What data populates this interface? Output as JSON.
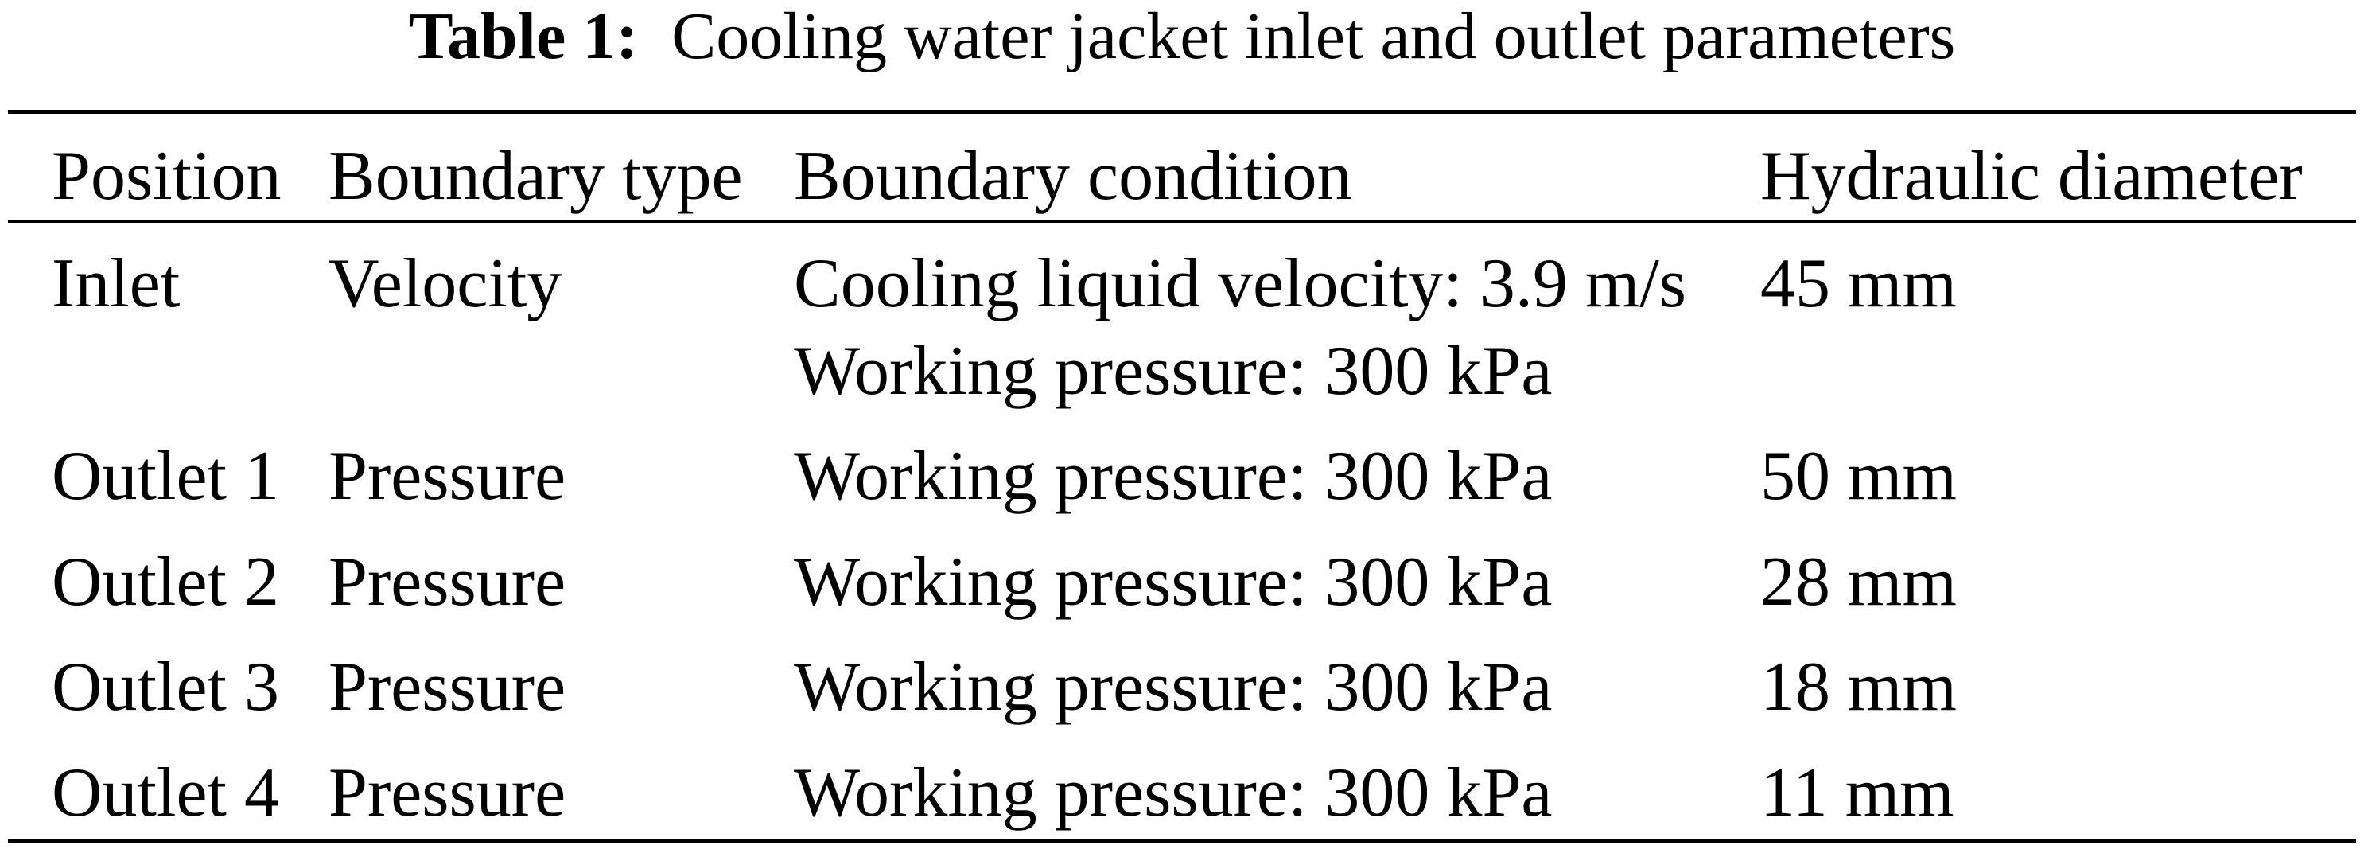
{
  "caption": {
    "label": "Table 1:",
    "text": "Cooling water jacket inlet and outlet parameters"
  },
  "table": {
    "headers": [
      "Position",
      "Boundary type",
      "Boundary condition",
      "Hydraulic diameter"
    ],
    "rows": [
      {
        "position": "Inlet",
        "type": "Velocity",
        "conditions": [
          "Cooling liquid velocity: 3.9 m/s",
          "Working pressure: 300 kPa"
        ],
        "diameter": "45 mm"
      },
      {
        "position": "Outlet 1",
        "type": "Pressure",
        "conditions": [
          "Working pressure: 300 kPa"
        ],
        "diameter": "50 mm"
      },
      {
        "position": "Outlet 2",
        "type": "Pressure",
        "conditions": [
          "Working pressure: 300 kPa"
        ],
        "diameter": "28 mm"
      },
      {
        "position": "Outlet 3",
        "type": "Pressure",
        "conditions": [
          "Working pressure: 300 kPa"
        ],
        "diameter": "18 mm"
      },
      {
        "position": "Outlet 4",
        "type": "Pressure",
        "conditions": [
          "Working pressure: 300 kPa"
        ],
        "diameter": "11 mm"
      }
    ]
  }
}
